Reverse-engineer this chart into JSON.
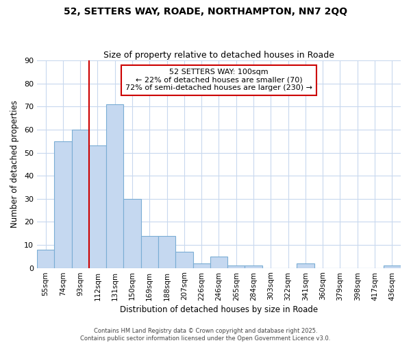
{
  "title_line1": "52, SETTERS WAY, ROADE, NORTHAMPTON, NN7 2QQ",
  "title_line2": "Size of property relative to detached houses in Roade",
  "xlabel": "Distribution of detached houses by size in Roade",
  "ylabel": "Number of detached properties",
  "categories": [
    "55sqm",
    "74sqm",
    "93sqm",
    "112sqm",
    "131sqm",
    "150sqm",
    "169sqm",
    "188sqm",
    "207sqm",
    "226sqm",
    "246sqm",
    "265sqm",
    "284sqm",
    "303sqm",
    "322sqm",
    "341sqm",
    "360sqm",
    "379sqm",
    "398sqm",
    "417sqm",
    "436sqm"
  ],
  "values": [
    8,
    55,
    60,
    53,
    71,
    30,
    14,
    14,
    7,
    2,
    5,
    1,
    1,
    0,
    0,
    2,
    0,
    0,
    0,
    0,
    1
  ],
  "bar_color": "#c5d8f0",
  "bar_edge_color": "#7aadd4",
  "red_line_x": 2.5,
  "annotation_line1": "52 SETTERS WAY: 100sqm",
  "annotation_line2": "← 22% of detached houses are smaller (70)",
  "annotation_line3": "72% of semi-detached houses are larger (230) →",
  "annotation_box_color": "#ffffff",
  "annotation_box_edge_color": "#cc0000",
  "ylim": [
    0,
    90
  ],
  "yticks": [
    0,
    10,
    20,
    30,
    40,
    50,
    60,
    70,
    80,
    90
  ],
  "bg_color": "#ffffff",
  "grid_color": "#c8d8ee",
  "footer_line1": "Contains HM Land Registry data © Crown copyright and database right 2025.",
  "footer_line2": "Contains public sector information licensed under the Open Government Licence v3.0."
}
